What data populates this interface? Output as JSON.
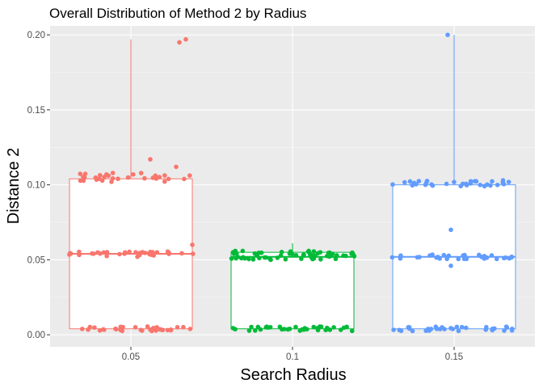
{
  "chart_data": {
    "type": "boxplot",
    "title": "Overall Distribution of Method 2 by Radius",
    "xlabel": "Search Radius",
    "ylabel": "Distance 2",
    "categories": [
      "0.05",
      "0.1",
      "0.15"
    ],
    "ylim": [
      -0.008,
      0.206
    ],
    "yticks": [
      0.0,
      0.05,
      0.1,
      0.15,
      0.2
    ],
    "ytick_labels": [
      "0.00",
      "0.05",
      "0.10",
      "0.15",
      "0.20"
    ],
    "grid": true,
    "legend": "none",
    "series": [
      {
        "category": "0.05",
        "color": "#F8766D",
        "stats": {
          "min": 0.004,
          "q1": 0.004,
          "median": 0.054,
          "q3": 0.104,
          "max": 0.197
        },
        "jitter_clusters": [
          {
            "center": 0.004,
            "spread": 0.0015,
            "count": 34
          },
          {
            "center": 0.054,
            "spread": 0.0015,
            "count": 34
          },
          {
            "center": 0.105,
            "spread": 0.003,
            "count": 30
          }
        ],
        "outliers": [
          {
            "x": 0.052,
            "y": 0.052
          },
          {
            "x": 0.069,
            "y": 0.06
          },
          {
            "x": 0.056,
            "y": 0.117
          },
          {
            "x": 0.046,
            "y": 0.104
          },
          {
            "x": 0.064,
            "y": 0.112
          },
          {
            "x": 0.065,
            "y": 0.195
          },
          {
            "x": 0.067,
            "y": 0.197
          }
        ]
      },
      {
        "category": "0.1",
        "color": "#00BA38",
        "stats": {
          "min": 0.004,
          "q1": 0.004,
          "median": 0.052,
          "q3": 0.055,
          "max": 0.061
        },
        "jitter_clusters": [
          {
            "center": 0.004,
            "spread": 0.0015,
            "count": 36
          },
          {
            "center": 0.053,
            "spread": 0.003,
            "count": 60
          }
        ],
        "outliers": []
      },
      {
        "category": "0.15",
        "color": "#619CFF",
        "stats": {
          "min": 0.003,
          "q1": 0.004,
          "median": 0.052,
          "q3": 0.1,
          "max": 0.2
        },
        "jitter_clusters": [
          {
            "center": 0.004,
            "spread": 0.0015,
            "count": 34
          },
          {
            "center": 0.052,
            "spread": 0.0015,
            "count": 32
          },
          {
            "center": 0.101,
            "spread": 0.002,
            "count": 32
          }
        ],
        "outliers": [
          {
            "x": 0.149,
            "y": 0.07
          },
          {
            "x": 0.149,
            "y": 0.046
          },
          {
            "x": 0.148,
            "y": 0.2
          }
        ]
      }
    ]
  }
}
